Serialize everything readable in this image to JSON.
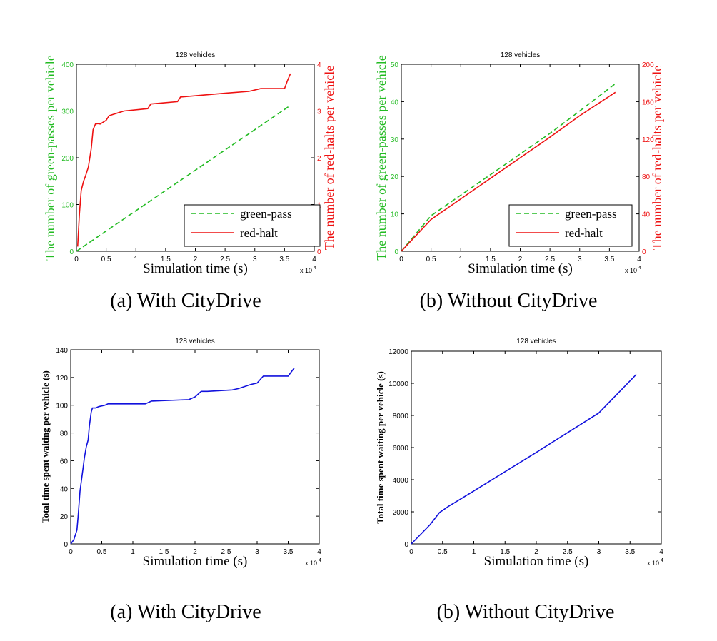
{
  "colors": {
    "green": "#22bb22",
    "red": "#ee1111",
    "blue": "#1111dd",
    "axis": "#000000"
  },
  "chart_data": [
    {
      "type": "line",
      "title": "128 vehicles",
      "caption": "(a) With CityDrive",
      "xlabel": "Simulation time (s)",
      "x_multiplier": "x 10",
      "x_exponent": "4",
      "xlim": [
        0,
        4
      ],
      "xticks": [
        "0",
        "0.5",
        "1",
        "1.5",
        "2",
        "2.5",
        "3",
        "3.5",
        "4"
      ],
      "ylabel_left": "The number of green-passes per vehicle",
      "ylim_left": [
        0,
        400
      ],
      "yticks_left": [
        "0",
        "100",
        "200",
        "300",
        "400"
      ],
      "ylabel_right": "The number of red-halts per vehicle",
      "ylim_right": [
        0,
        4
      ],
      "yticks_right": [
        "0",
        "1",
        "2",
        "3",
        "4"
      ],
      "legend_position": "bottom-right",
      "series": [
        {
          "name": "green-pass",
          "axis": "left",
          "style": "dashed",
          "color": "#22bb22",
          "x": [
            0,
            3.6
          ],
          "y": [
            0,
            312
          ]
        },
        {
          "name": "red-halt",
          "axis": "right",
          "style": "solid",
          "color": "#ee1111",
          "x": [
            0.02,
            0.05,
            0.08,
            0.12,
            0.15,
            0.2,
            0.25,
            0.28,
            0.32,
            0.36,
            0.4,
            0.5,
            0.55,
            0.6,
            0.75,
            0.8,
            1.2,
            1.25,
            1.7,
            1.75,
            2.5,
            2.9,
            3.1,
            3.5,
            3.55,
            3.6
          ],
          "y": [
            0.1,
            0.8,
            1.3,
            1.5,
            1.6,
            1.8,
            2.2,
            2.6,
            2.72,
            2.73,
            2.72,
            2.8,
            2.9,
            2.92,
            2.98,
            3.0,
            3.05,
            3.15,
            3.2,
            3.3,
            3.38,
            3.42,
            3.48,
            3.48,
            3.65,
            3.8
          ]
        }
      ]
    },
    {
      "type": "line",
      "title": "128 vehicles",
      "caption": "(b) Without CityDrive",
      "xlabel": "Simulation time (s)",
      "x_multiplier": "x 10",
      "x_exponent": "4",
      "xlim": [
        0,
        4
      ],
      "xticks": [
        "0",
        "0.5",
        "1",
        "1.5",
        "2",
        "2.5",
        "3",
        "3.5",
        "4"
      ],
      "ylabel_left": "The number of green-passes per vehicle",
      "ylim_left": [
        0,
        50
      ],
      "yticks_left": [
        "0",
        "10",
        "20",
        "30",
        "40",
        "50"
      ],
      "ylabel_right": "The number of red-halts per vehicle",
      "ylim_right": [
        0,
        200
      ],
      "yticks_right": [
        "0",
        "40",
        "80",
        "120",
        "160",
        "200"
      ],
      "legend_position": "bottom-right",
      "series": [
        {
          "name": "green-pass",
          "axis": "left",
          "style": "dashed",
          "color": "#22bb22",
          "x": [
            0,
            0.5,
            1.0,
            1.5,
            2.0,
            2.5,
            3.0,
            3.6
          ],
          "y": [
            0,
            9.5,
            15,
            20.5,
            26,
            31.5,
            37.5,
            44.8
          ]
        },
        {
          "name": "red-halt",
          "axis": "right",
          "style": "solid",
          "color": "#ee1111",
          "x": [
            0,
            0.5,
            1.0,
            1.5,
            2.0,
            2.5,
            3.0,
            3.6
          ],
          "y": [
            0,
            34,
            56,
            78,
            100,
            122,
            145,
            170
          ]
        }
      ]
    },
    {
      "type": "line",
      "title": "128 vehicles",
      "caption": "(a) With CityDrive",
      "xlabel": "Simulation time (s)",
      "x_multiplier": "x 10",
      "x_exponent": "4",
      "xlim": [
        0,
        4
      ],
      "xticks": [
        "0",
        "0.5",
        "1",
        "1.5",
        "2",
        "2.5",
        "3",
        "3.5",
        "4"
      ],
      "ylabel_left": "Total time spent waiting per vehicle (s)",
      "ylim_left": [
        0,
        140
      ],
      "yticks_left": [
        "0",
        "20",
        "40",
        "60",
        "80",
        "100",
        "120",
        "140"
      ],
      "series": [
        {
          "name": "",
          "axis": "left",
          "style": "solid",
          "color": "#1111dd",
          "x": [
            0,
            0.05,
            0.1,
            0.12,
            0.15,
            0.2,
            0.22,
            0.25,
            0.28,
            0.3,
            0.33,
            0.35,
            0.4,
            0.45,
            0.55,
            0.6,
            1.2,
            1.3,
            1.9,
            2.0,
            2.1,
            2.2,
            2.6,
            2.7,
            2.9,
            3.0,
            3.1,
            3.5,
            3.55,
            3.6
          ],
          "y": [
            0,
            3,
            10,
            20,
            38,
            55,
            62,
            70,
            75,
            85,
            95,
            98,
            98,
            99,
            100,
            101,
            101,
            103,
            104,
            106,
            110,
            110,
            111,
            112,
            115,
            116,
            121,
            121,
            124,
            127
          ]
        }
      ]
    },
    {
      "type": "line",
      "title": "128 vehicles",
      "caption": "(b) Without CityDrive",
      "xlabel": "Simulation time (s)",
      "x_multiplier": "x 10",
      "x_exponent": "4",
      "xlim": [
        0,
        4
      ],
      "xticks": [
        "0",
        "0.5",
        "1",
        "1.5",
        "2",
        "2.5",
        "3",
        "3.5",
        "4"
      ],
      "ylabel_left": "Total time spent waiting per vehicle (s)",
      "ylim_left": [
        0,
        12000
      ],
      "yticks_left": [
        "0",
        "2000",
        "4000",
        "6000",
        "8000",
        "10000",
        "12000"
      ],
      "series": [
        {
          "name": "",
          "axis": "left",
          "style": "solid",
          "color": "#1111dd",
          "x": [
            0,
            0.3,
            0.45,
            0.6,
            1.0,
            2.0,
            3.0,
            3.6
          ],
          "y": [
            0,
            1200,
            1950,
            2350,
            3300,
            5700,
            8150,
            10550
          ]
        }
      ]
    }
  ]
}
